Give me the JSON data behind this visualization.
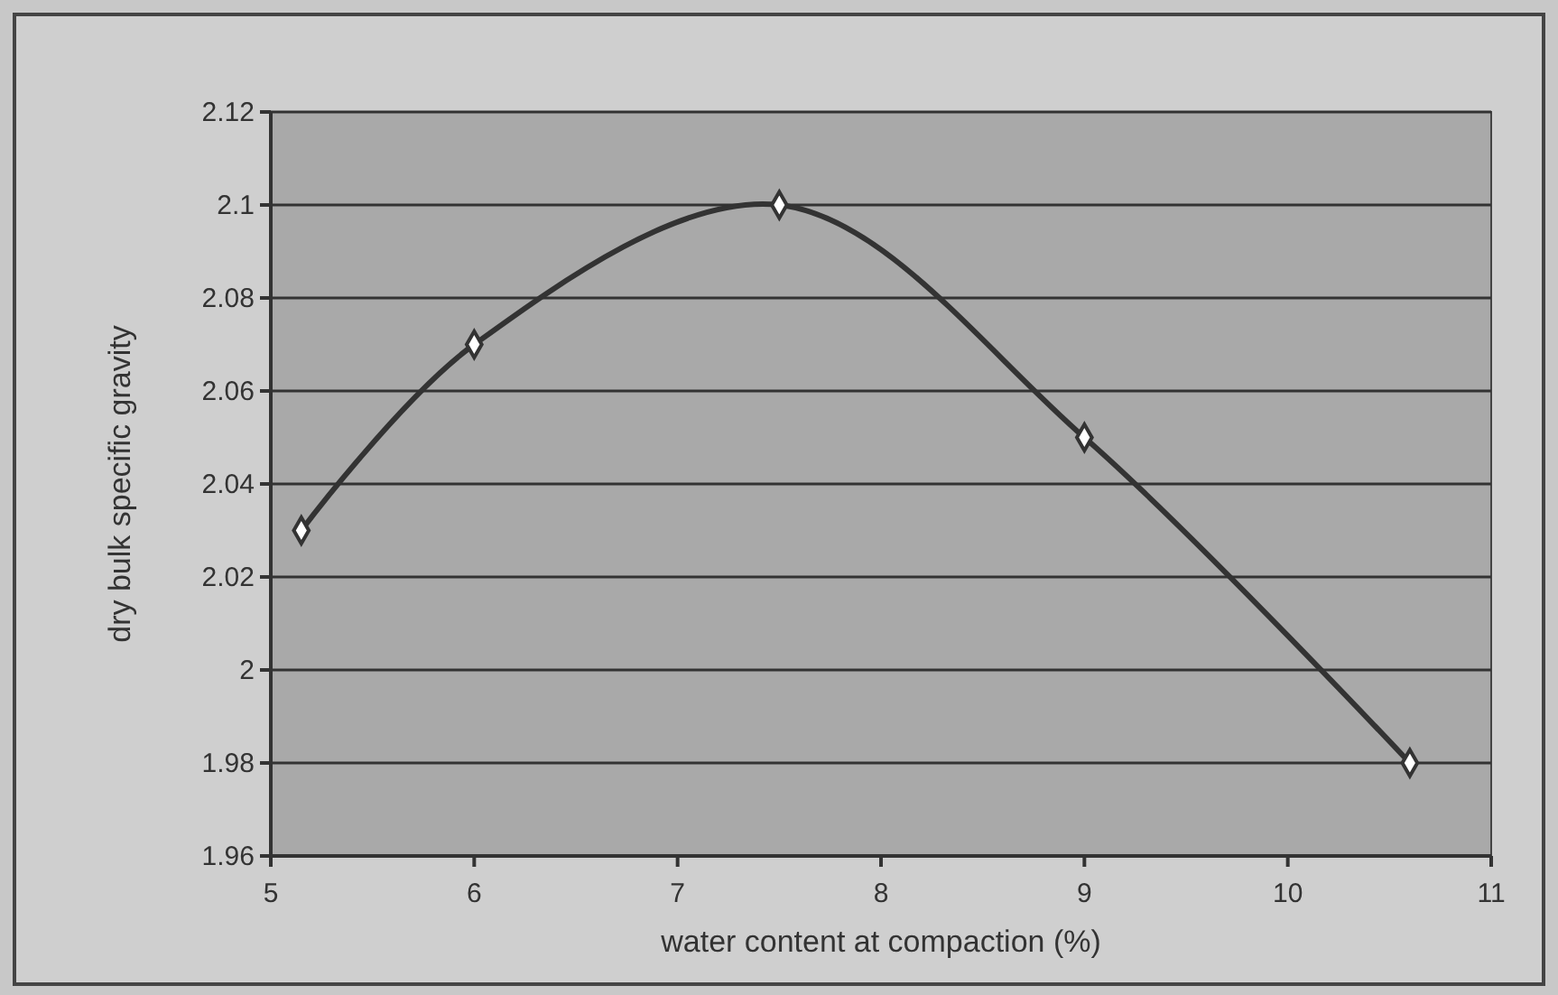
{
  "chart_data": {
    "type": "line",
    "xlabel": "water content at compaction (%)",
    "ylabel": "dry bulk specific gravity",
    "x": [
      5.15,
      6,
      7.5,
      9,
      10.6
    ],
    "series": [
      {
        "color": "#333333",
        "values": [
          2.03,
          2.07,
          2.1,
          2.05,
          1.98
        ]
      }
    ],
    "xlim": [
      5,
      11
    ],
    "xticks": [
      5,
      6,
      7,
      8,
      9,
      10,
      11
    ],
    "ylim": [
      1.96,
      2.12
    ],
    "yticks": [
      1.96,
      1.98,
      2,
      2.02,
      2.04,
      2.06,
      2.08,
      2.1,
      2.12
    ],
    "grid": "y",
    "marker": "diamond",
    "line_style": "solid"
  }
}
